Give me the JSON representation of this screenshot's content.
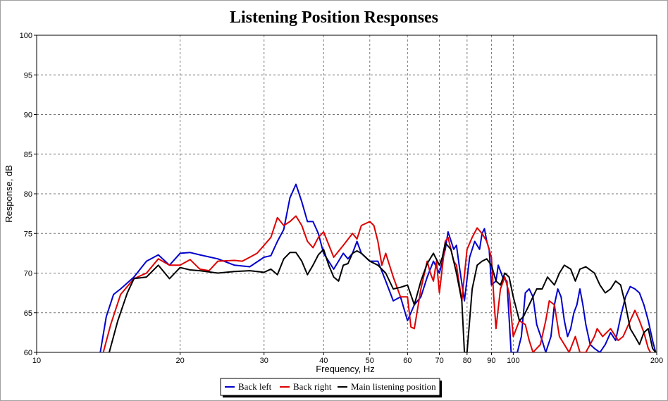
{
  "chart_data": {
    "type": "line",
    "title": "Listening Position Responses",
    "xlabel": "Frequency, Hz",
    "ylabel": "Response, dB",
    "xscale": "log",
    "xlim": [
      10,
      200
    ],
    "ylim": [
      60,
      100
    ],
    "x_ticks": [
      10,
      20,
      30,
      40,
      50,
      60,
      70,
      80,
      90,
      100,
      200
    ],
    "y_ticks": [
      60,
      65,
      70,
      75,
      80,
      85,
      90,
      95,
      100
    ],
    "grid": true,
    "legend_position": "bottom-center",
    "series": [
      {
        "name": "Back left",
        "color": "#0000cc",
        "points": [
          [
            13.6,
            60
          ],
          [
            14,
            64.5
          ],
          [
            14.5,
            67.3
          ],
          [
            15,
            68
          ],
          [
            16,
            69.5
          ],
          [
            17,
            71.5
          ],
          [
            18,
            72.3
          ],
          [
            19,
            71
          ],
          [
            20,
            72.5
          ],
          [
            21,
            72.6
          ],
          [
            22,
            72.3
          ],
          [
            24,
            71.8
          ],
          [
            26,
            71
          ],
          [
            28,
            70.8
          ],
          [
            30,
            72
          ],
          [
            31,
            72.2
          ],
          [
            32,
            74
          ],
          [
            33,
            75.5
          ],
          [
            34,
            79.5
          ],
          [
            35,
            81.2
          ],
          [
            36,
            79
          ],
          [
            37,
            76.5
          ],
          [
            38,
            76.5
          ],
          [
            39,
            75
          ],
          [
            40,
            72.5
          ],
          [
            42,
            70.5
          ],
          [
            44,
            72.5
          ],
          [
            45,
            71.8
          ],
          [
            46,
            72.5
          ],
          [
            47,
            74
          ],
          [
            48,
            72.5
          ],
          [
            50,
            71.5
          ],
          [
            52,
            71.5
          ],
          [
            54,
            69
          ],
          [
            56,
            66.5
          ],
          [
            58,
            67
          ],
          [
            60,
            64
          ],
          [
            62,
            66
          ],
          [
            64,
            67
          ],
          [
            66,
            69.5
          ],
          [
            68,
            71.5
          ],
          [
            70,
            70
          ],
          [
            72,
            73
          ],
          [
            73,
            75.2
          ],
          [
            75,
            73
          ],
          [
            76,
            73.5
          ],
          [
            77,
            71
          ],
          [
            79,
            66.5
          ],
          [
            81,
            72
          ],
          [
            83,
            74
          ],
          [
            85,
            73
          ],
          [
            86,
            75
          ],
          [
            87,
            75.6
          ],
          [
            88,
            74
          ],
          [
            89,
            73
          ],
          [
            90,
            68.5
          ],
          [
            92,
            69
          ],
          [
            93,
            71
          ],
          [
            95,
            69.5
          ],
          [
            97,
            69
          ],
          [
            99,
            60
          ],
          [
            102,
            60
          ],
          [
            104,
            62
          ],
          [
            106,
            67.5
          ],
          [
            108,
            68
          ],
          [
            110,
            67
          ],
          [
            112,
            63.5
          ],
          [
            115,
            61.5
          ],
          [
            117,
            60
          ],
          [
            120,
            62
          ],
          [
            122,
            66
          ],
          [
            124,
            68
          ],
          [
            126,
            67
          ],
          [
            128,
            64
          ],
          [
            130,
            62
          ],
          [
            132,
            63
          ],
          [
            134,
            65
          ],
          [
            136,
            66
          ],
          [
            138,
            68
          ],
          [
            140,
            66
          ],
          [
            142,
            63.5
          ],
          [
            145,
            61
          ],
          [
            148,
            60.5
          ],
          [
            152,
            60
          ],
          [
            156,
            61
          ],
          [
            160,
            62.5
          ],
          [
            164,
            61.5
          ],
          [
            168,
            64.5
          ],
          [
            172,
            67
          ],
          [
            176,
            68.3
          ],
          [
            180,
            68
          ],
          [
            184,
            67.5
          ],
          [
            188,
            66
          ],
          [
            192,
            64
          ],
          [
            196,
            61.5
          ],
          [
            199,
            60
          ]
        ]
      },
      {
        "name": "Back right",
        "color": "#dd0000",
        "points": [
          [
            13.8,
            60
          ],
          [
            14.3,
            63.5
          ],
          [
            15,
            67.3
          ],
          [
            16,
            69.3
          ],
          [
            17,
            70
          ],
          [
            18,
            71.8
          ],
          [
            19,
            71
          ],
          [
            20,
            71
          ],
          [
            21,
            71.7
          ],
          [
            22,
            70.5
          ],
          [
            23,
            70.3
          ],
          [
            24,
            71.5
          ],
          [
            26,
            71.6
          ],
          [
            27,
            71.5
          ],
          [
            28,
            72
          ],
          [
            29,
            72.5
          ],
          [
            30,
            73.5
          ],
          [
            31,
            74.5
          ],
          [
            32,
            77
          ],
          [
            33,
            76
          ],
          [
            34,
            76.5
          ],
          [
            35,
            77.2
          ],
          [
            36,
            76
          ],
          [
            37,
            74
          ],
          [
            38,
            73.2
          ],
          [
            39,
            74.5
          ],
          [
            40,
            75.2
          ],
          [
            42,
            72
          ],
          [
            44,
            73.5
          ],
          [
            46,
            75
          ],
          [
            47,
            74.3
          ],
          [
            48,
            76
          ],
          [
            50,
            76.5
          ],
          [
            51,
            76
          ],
          [
            52,
            74
          ],
          [
            53,
            71
          ],
          [
            54,
            72.5
          ],
          [
            56,
            69.5
          ],
          [
            58,
            67
          ],
          [
            60,
            67
          ],
          [
            61,
            63.2
          ],
          [
            62,
            63
          ],
          [
            64,
            68
          ],
          [
            66,
            71.5
          ],
          [
            67,
            70
          ],
          [
            68,
            69
          ],
          [
            69,
            71.5
          ],
          [
            70,
            67.5
          ],
          [
            72,
            74
          ],
          [
            73,
            74.5
          ],
          [
            75,
            71.5
          ],
          [
            76,
            71
          ],
          [
            78,
            66.5
          ],
          [
            80,
            73
          ],
          [
            82,
            74.5
          ],
          [
            84,
            75.7
          ],
          [
            86,
            75
          ],
          [
            88,
            74
          ],
          [
            90,
            72
          ],
          [
            91,
            67
          ],
          [
            92,
            63
          ],
          [
            94,
            68
          ],
          [
            96,
            69.5
          ],
          [
            98,
            67.5
          ],
          [
            100,
            62
          ],
          [
            103,
            64
          ],
          [
            106,
            63.5
          ],
          [
            108,
            61.5
          ],
          [
            110,
            60
          ],
          [
            114,
            61
          ],
          [
            117,
            64
          ],
          [
            119,
            66.5
          ],
          [
            122,
            66
          ],
          [
            125,
            62
          ],
          [
            128,
            61
          ],
          [
            131,
            60
          ],
          [
            135,
            62
          ],
          [
            138,
            60
          ],
          [
            142,
            60
          ],
          [
            148,
            62
          ],
          [
            150,
            63
          ],
          [
            154,
            62
          ],
          [
            160,
            63
          ],
          [
            166,
            61.5
          ],
          [
            170,
            62
          ],
          [
            176,
            64
          ],
          [
            180,
            65.3
          ],
          [
            184,
            64
          ],
          [
            188,
            62.5
          ],
          [
            192,
            60.5
          ],
          [
            194,
            60
          ]
        ]
      },
      {
        "name": "Main listening position",
        "color": "#000000",
        "points": [
          [
            14.2,
            60
          ],
          [
            14.8,
            64
          ],
          [
            15.5,
            67.5
          ],
          [
            16,
            69.3
          ],
          [
            17,
            69.5
          ],
          [
            18,
            71
          ],
          [
            19,
            69.3
          ],
          [
            20,
            70.7
          ],
          [
            21,
            70.4
          ],
          [
            22,
            70.3
          ],
          [
            24,
            70
          ],
          [
            26,
            70.2
          ],
          [
            28,
            70.3
          ],
          [
            30,
            70.1
          ],
          [
            31,
            70.5
          ],
          [
            32,
            69.8
          ],
          [
            33,
            71.8
          ],
          [
            34,
            72.6
          ],
          [
            35,
            72.6
          ],
          [
            36,
            71.5
          ],
          [
            37,
            69.8
          ],
          [
            38,
            71
          ],
          [
            39,
            72.3
          ],
          [
            40,
            73
          ],
          [
            41,
            71
          ],
          [
            42,
            69.5
          ],
          [
            43,
            69
          ],
          [
            44,
            71
          ],
          [
            45,
            71.2
          ],
          [
            46,
            72.5
          ],
          [
            47,
            72.8
          ],
          [
            48,
            72.5
          ],
          [
            50,
            71.5
          ],
          [
            52,
            71
          ],
          [
            54,
            70
          ],
          [
            56,
            68
          ],
          [
            58,
            68.2
          ],
          [
            60,
            68.5
          ],
          [
            62,
            66
          ],
          [
            64,
            69
          ],
          [
            66,
            71.2
          ],
          [
            68,
            72.5
          ],
          [
            70,
            71
          ],
          [
            71,
            72
          ],
          [
            72,
            73.8
          ],
          [
            74,
            73
          ],
          [
            76,
            70
          ],
          [
            78,
            66.5
          ],
          [
            79,
            60
          ],
          [
            80,
            60
          ],
          [
            82,
            68
          ],
          [
            84,
            71
          ],
          [
            86,
            71.5
          ],
          [
            88,
            71.8
          ],
          [
            90,
            71
          ],
          [
            92,
            69
          ],
          [
            94,
            68.5
          ],
          [
            96,
            70
          ],
          [
            98,
            69.5
          ],
          [
            100,
            67
          ],
          [
            103,
            64
          ],
          [
            105,
            64.5
          ],
          [
            108,
            66
          ],
          [
            112,
            68
          ],
          [
            115,
            68
          ],
          [
            118,
            69.5
          ],
          [
            122,
            68.5
          ],
          [
            125,
            70
          ],
          [
            128,
            71
          ],
          [
            132,
            70.5
          ],
          [
            135,
            69
          ],
          [
            138,
            70.5
          ],
          [
            142,
            70.8
          ],
          [
            148,
            70
          ],
          [
            152,
            68.5
          ],
          [
            156,
            67.5
          ],
          [
            160,
            68
          ],
          [
            164,
            69
          ],
          [
            168,
            68.5
          ],
          [
            172,
            66
          ],
          [
            176,
            63
          ],
          [
            180,
            62
          ],
          [
            184,
            61
          ],
          [
            188,
            62.5
          ],
          [
            192,
            63
          ],
          [
            196,
            60.5
          ],
          [
            199,
            60
          ]
        ]
      }
    ]
  }
}
